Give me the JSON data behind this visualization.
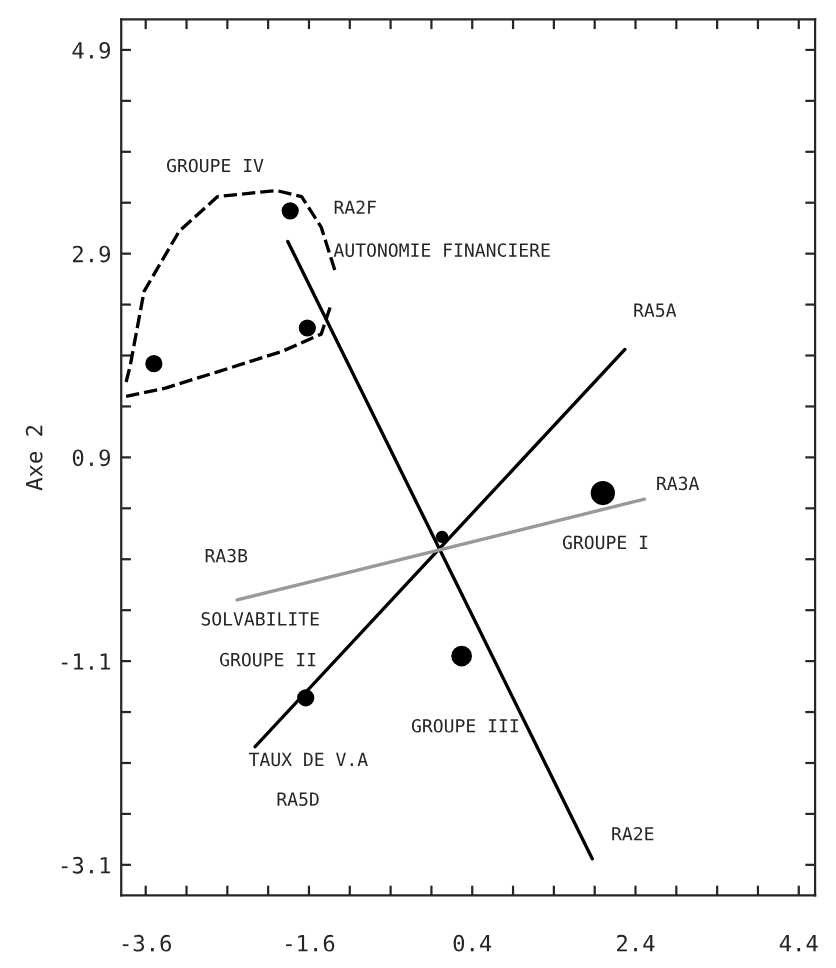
{
  "chart_data": {
    "type": "bubble",
    "ylabel": "Axe 2",
    "xlim": [
      -3.9,
      4.6
    ],
    "ylim": [
      -3.4,
      5.2
    ],
    "xticks": [
      -3.6,
      {
        "value": -3.1,
        "label": null
      },
      {
        "value": -2.6,
        "label": null
      },
      {
        "value": -2.1,
        "label": null
      },
      -1.6,
      {
        "value": -1.1,
        "label": null
      },
      {
        "value": -0.6,
        "label": null
      },
      {
        "value": -0.1,
        "label": null
      },
      0.4,
      {
        "value": 0.9,
        "label": null
      },
      {
        "value": 1.4,
        "label": null
      },
      {
        "value": 1.9,
        "label": null
      },
      2.4,
      {
        "value": 2.9,
        "label": null
      },
      {
        "value": 3.4,
        "label": null
      },
      {
        "value": 3.9,
        "label": null
      },
      4.4
    ],
    "yticks": [
      -3.1,
      {
        "value": -2.6,
        "label": null
      },
      {
        "value": -2.1,
        "label": null
      },
      {
        "value": -1.6,
        "label": null
      },
      -1.1,
      {
        "value": -0.6,
        "label": null
      },
      {
        "value": -0.1,
        "label": null
      },
      {
        "value": 0.4,
        "label": null
      },
      0.9,
      {
        "value": 1.4,
        "label": null
      },
      {
        "value": 1.9,
        "label": null
      },
      {
        "value": 2.4,
        "label": null
      },
      2.9,
      {
        "value": 3.4,
        "label": null
      },
      {
        "value": 3.9,
        "label": null
      },
      {
        "value": 4.4,
        "label": null
      },
      4.9
    ],
    "grid": false,
    "series": [
      {
        "color": "#000000",
        "marker": "circle",
        "x": [
          -1.83,
          -1.62,
          -3.5,
          2.0,
          0.03,
          0.27,
          -1.64
        ],
        "values": [
          3.32,
          2.17,
          1.82,
          0.55,
          0.12,
          -1.05,
          -1.46
        ],
        "sizes": [
          0.45,
          0.45,
          0.45,
          1,
          0.2,
          0.7,
          0.45
        ]
      },
      {
        "type": "line",
        "color": "#000000",
        "line_style": "solid",
        "x": [
          -1.86,
          1.87
        ],
        "values": [
          3.02,
          -3.04
        ]
      },
      {
        "type": "line",
        "color": "#000000",
        "line_style": "solid",
        "x": [
          -2.26,
          2.27
        ],
        "values": [
          -1.94,
          1.96
        ]
      },
      {
        "type": "line",
        "color": "#999999",
        "line_style": "solid",
        "x": [
          -2.48,
          2.51
        ],
        "values": [
          -0.5,
          0.49
        ]
      },
      {
        "type": "line",
        "color": "#000000",
        "line_style": "dashed",
        "x": [
          -3.84,
          -3.79,
          -3.62,
          -3.19,
          -2.72,
          -2.0,
          -1.69,
          -1.45,
          -1.28
        ],
        "values": [
          1.64,
          1.8,
          2.53,
          3.12,
          3.46,
          3.52,
          3.46,
          3.16,
          2.73
        ]
      },
      {
        "type": "line",
        "color": "#000000",
        "line_style": "dashed",
        "x": [
          -3.84,
          -3.36,
          -2.72,
          -1.93,
          -1.45,
          -1.33
        ],
        "values": [
          1.5,
          1.58,
          1.74,
          1.94,
          2.11,
          2.4
        ]
      }
    ],
    "annotations": [
      "GROUPE IV",
      "RA2F",
      "AUTONOMIE FINANCIERE",
      "RA5A",
      "RA3A",
      "GROUPE I",
      "RA3B",
      "SOLVABILITE",
      "GROUPE II",
      "GROUPE III",
      "TAUX DE V.A",
      "RA5D",
      "RA2E"
    ]
  }
}
